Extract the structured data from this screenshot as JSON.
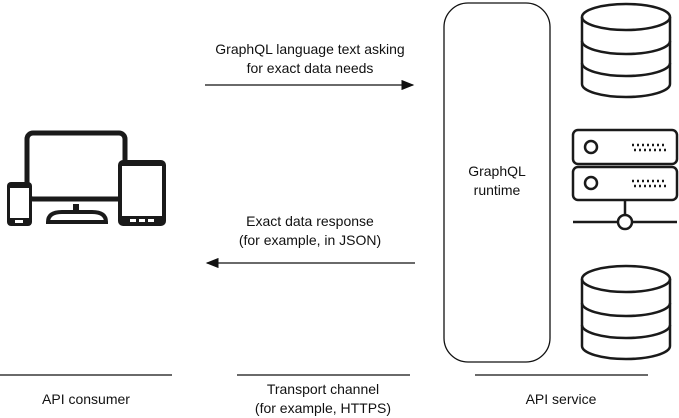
{
  "request_label": [
    "GraphQL language text asking",
    "for exact data needs"
  ],
  "response_label": [
    "Exact data response",
    "(for example, in JSON)"
  ],
  "runtime_label": [
    "GraphQL",
    "runtime"
  ],
  "sections": {
    "consumer": "API consumer",
    "transport": [
      "Transport channel",
      "(for example, HTTPS)"
    ],
    "service": "API service"
  },
  "icons": [
    "devices-icon",
    "database-icon",
    "server-icon",
    "database-icon"
  ]
}
